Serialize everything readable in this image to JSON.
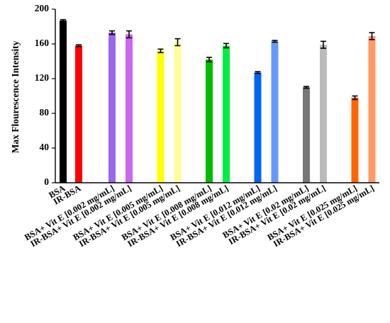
{
  "chart_data": {
    "type": "bar",
    "title": "",
    "xlabel": "",
    "ylabel": "Max Flourescence Intensity",
    "ylim": [
      0,
      200
    ],
    "yticks": [
      0,
      40,
      80,
      120,
      160,
      200
    ],
    "grid": false,
    "legend": "none",
    "bars": [
      {
        "label": "BSA",
        "value": 187,
        "error": 1,
        "color": "#000000",
        "group": 0
      },
      {
        "label": "IR-BSA",
        "value": 158,
        "error": 1,
        "color": "#ff0000",
        "group": 0
      },
      {
        "label": "BSA+ Vit E [0.002 mg/mL]",
        "value": 173,
        "error": 2,
        "color": "#9966ee",
        "group": 1
      },
      {
        "label": "IR-BSA+ Vit E [0.002 mg/mL]",
        "value": 171,
        "error": 4,
        "color": "#cc66ee",
        "group": 1
      },
      {
        "label": "BSA+ Vit E [0.005 mg/mL]",
        "value": 152,
        "error": 2,
        "color": "#ffff00",
        "group": 2
      },
      {
        "label": "IR-BSA+ Vit E [0.005 mg/mL]",
        "value": 162,
        "error": 4,
        "color": "#ffff99",
        "group": 2
      },
      {
        "label": "BSA+ Vit E [0.008 mg/mL]",
        "value": 142,
        "error": 2.5,
        "color": "#00bb00",
        "group": 3
      },
      {
        "label": "IR-BSA+ Vit E [0.008 mg/mL]",
        "value": 158,
        "error": 2.5,
        "color": "#00ee44",
        "group": 3
      },
      {
        "label": "BSA+ Vit E [0.012 mg/mL]",
        "value": 127,
        "error": 1,
        "color": "#0066ee",
        "group": 4
      },
      {
        "label": "IR-BSA+ Vit E [0.012 mg/mL]",
        "value": 163,
        "error": 1,
        "color": "#6699ff",
        "group": 4
      },
      {
        "label": "BSA+ Vit E [0.02 mg/mL]",
        "value": 110,
        "error": 1,
        "color": "#777777",
        "group": 5
      },
      {
        "label": "IR-BSA+ Vit E [0.02 mg/mL]",
        "value": 159,
        "error": 4,
        "color": "#bbbbbb",
        "group": 5
      },
      {
        "label": "BSA+ Vit E [0.025 mg/mL]",
        "value": 98,
        "error": 2,
        "color": "#ff6600",
        "group": 6
      },
      {
        "label": "IR-BSA+ Vit E [0.025 mg/mL]",
        "value": 169,
        "error": 4,
        "color": "#ff9966",
        "group": 6
      }
    ]
  }
}
